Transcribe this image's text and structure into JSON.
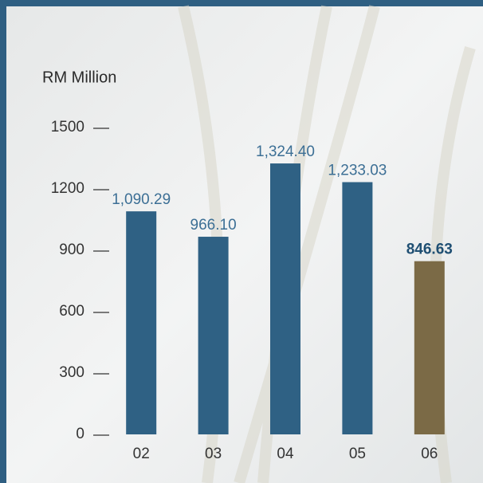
{
  "chart_data": {
    "type": "bar",
    "y_axis_label": "RM Million",
    "categories": [
      "02",
      "03",
      "04",
      "05",
      "06"
    ],
    "values": [
      1090.29,
      966.1,
      1324.4,
      1233.03,
      846.63
    ],
    "value_labels": [
      "1,090.29",
      "966.10",
      "1,324.40",
      "1,233.03",
      "846.63"
    ],
    "colors": [
      "#2f6184",
      "#2f6184",
      "#2f6184",
      "#2f6184",
      "#7b6a46"
    ],
    "ylim": [
      0,
      1500
    ],
    "yticks": [
      0,
      300,
      600,
      900,
      1200,
      1500
    ]
  }
}
